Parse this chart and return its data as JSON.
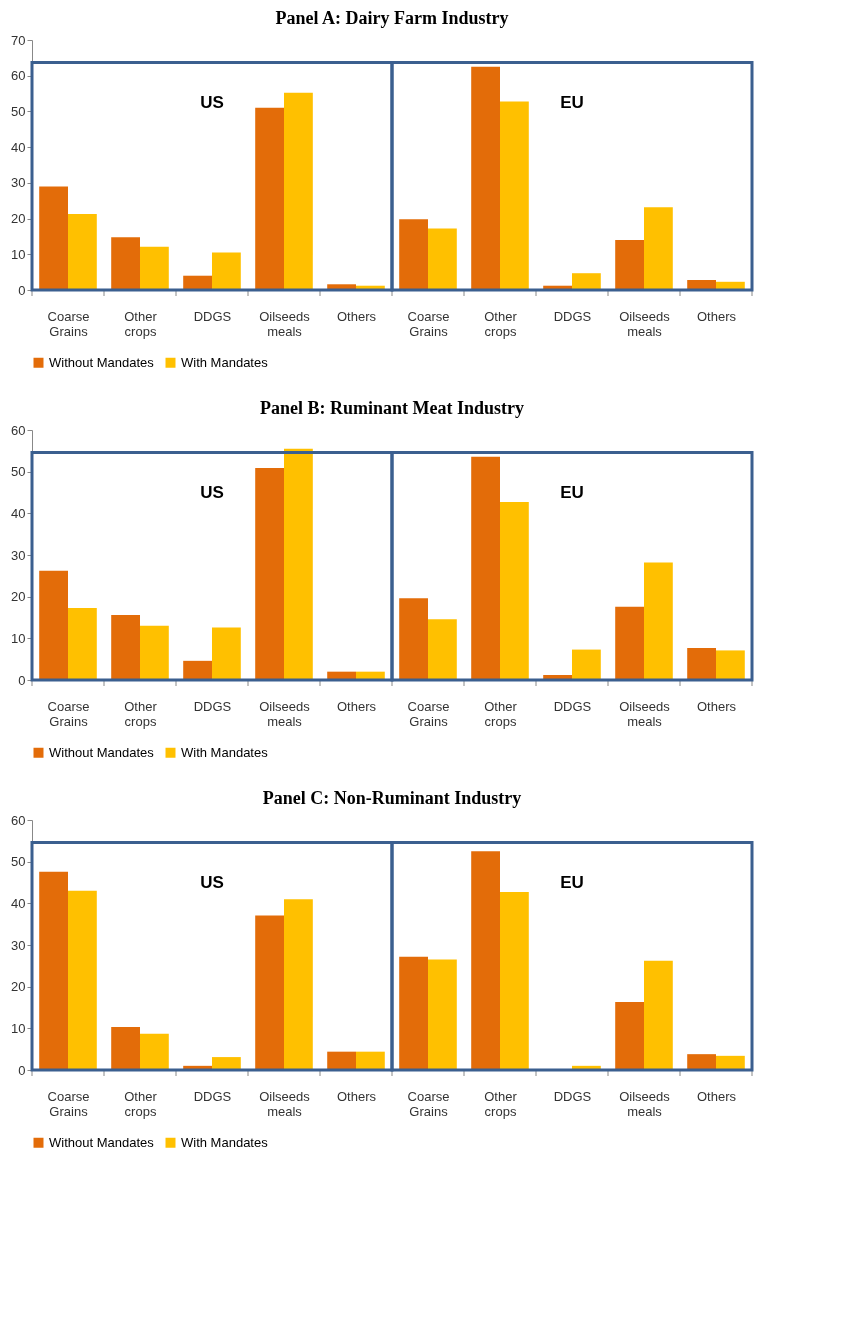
{
  "chart_data": [
    {
      "type": "bar",
      "title": "Panel A: Dairy Farm Industry",
      "categories": [
        "Coarse Grains",
        "Other crops",
        "DDGS",
        "Oilseeds meals",
        "Others",
        "Coarse Grains",
        "Other crops",
        "DDGS",
        "Oilseeds meals",
        "Others"
      ],
      "series": [
        {
          "name": "Without Mandates",
          "color": "#e36c09",
          "values": [
            29,
            14.8,
            4,
            51,
            1.6,
            19.8,
            62.5,
            1.2,
            14,
            2.8
          ]
        },
        {
          "name": "With Mandates",
          "color": "#ffc000",
          "values": [
            21.3,
            12.1,
            10.5,
            55.2,
            1.2,
            17.2,
            52.8,
            4.7,
            23.2,
            2.3
          ]
        }
      ],
      "annotations": [
        "US",
        "EU"
      ],
      "ylim": [
        0,
        70
      ],
      "yticks": [
        0,
        10,
        20,
        30,
        40,
        50,
        60,
        70
      ],
      "grid": false,
      "legend": "bottom"
    },
    {
      "type": "bar",
      "title": "Panel B: Ruminant Meat Industry",
      "categories": [
        "Coarse Grains",
        "Other crops",
        "DDGS",
        "Oilseeds meals",
        "Others",
        "Coarse Grains",
        "Other crops",
        "DDGS",
        "Oilseeds meals",
        "Others"
      ],
      "series": [
        {
          "name": "Without Mandates",
          "color": "#e36c09",
          "values": [
            26.2,
            15.6,
            4.6,
            50.9,
            2,
            19.6,
            53.6,
            1.2,
            17.6,
            7.7
          ]
        },
        {
          "name": "With Mandates",
          "color": "#ffc000",
          "values": [
            17.3,
            13,
            12.6,
            55.5,
            2,
            14.6,
            42.7,
            7.3,
            28.2,
            7.1
          ]
        }
      ],
      "annotations": [
        "US",
        "EU"
      ],
      "ylim": [
        0,
        60
      ],
      "yticks": [
        0,
        10,
        20,
        30,
        40,
        50,
        60
      ],
      "grid": false,
      "legend": "bottom"
    },
    {
      "type": "bar",
      "title": "Panel C: Non-Ruminant Industry",
      "categories": [
        "Coarse Grains",
        "Other crops",
        "DDGS",
        "Oilseeds meals",
        "Others",
        "Coarse Grains",
        "Other crops",
        "DDGS",
        "Oilseeds meals",
        "Others"
      ],
      "series": [
        {
          "name": "Without Mandates",
          "color": "#e36c09",
          "values": [
            47.6,
            10.3,
            1,
            37.1,
            4.4,
            27.2,
            52.5,
            0,
            16.3,
            3.8
          ]
        },
        {
          "name": "With Mandates",
          "color": "#ffc000",
          "values": [
            43,
            8.7,
            3.1,
            41,
            4.4,
            26.5,
            42.7,
            1,
            26.2,
            3.4
          ]
        }
      ],
      "annotations": [
        "US",
        "EU"
      ],
      "ylim": [
        0,
        60
      ],
      "yticks": [
        0,
        10,
        20,
        30,
        40,
        50,
        60
      ],
      "grid": false,
      "legend": "bottom"
    }
  ]
}
